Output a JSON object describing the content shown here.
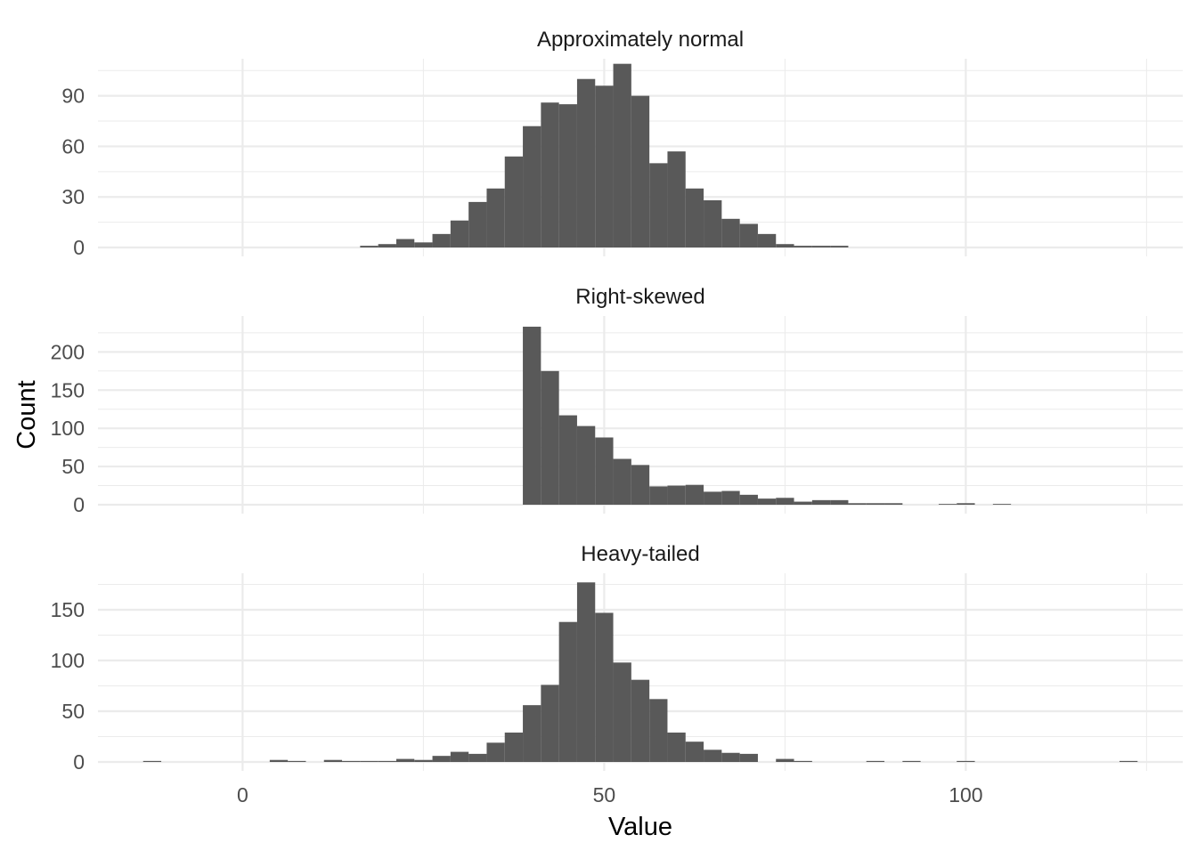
{
  "chart_data": {
    "type": "bar",
    "subtype": "faceted histogram",
    "xlabel": "Value",
    "ylabel": "Count",
    "xlim": [
      -20,
      130
    ],
    "x_ticks": [
      0,
      50,
      100
    ],
    "x_minor": [
      -25,
      25,
      75,
      125
    ],
    "bin_width": 2.5,
    "bar_color": "#595959",
    "grid_color": "#ebebeb",
    "grid": true,
    "facets": [
      {
        "name": "Approximately normal",
        "ylim": [
          0,
          112
        ],
        "y_ticks": [
          0,
          30,
          60,
          90
        ],
        "y_minor": [
          15,
          45,
          75,
          105
        ],
        "bins": [
          {
            "x": 17.5,
            "count": 1
          },
          {
            "x": 20,
            "count": 2
          },
          {
            "x": 22.5,
            "count": 5
          },
          {
            "x": 25,
            "count": 3
          },
          {
            "x": 27.5,
            "count": 8
          },
          {
            "x": 30,
            "count": 16
          },
          {
            "x": 32.5,
            "count": 27
          },
          {
            "x": 35,
            "count": 35
          },
          {
            "x": 37.5,
            "count": 54
          },
          {
            "x": 40,
            "count": 72
          },
          {
            "x": 42.5,
            "count": 86
          },
          {
            "x": 45,
            "count": 85
          },
          {
            "x": 47.5,
            "count": 100
          },
          {
            "x": 50,
            "count": 96
          },
          {
            "x": 52.5,
            "count": 109
          },
          {
            "x": 55,
            "count": 90
          },
          {
            "x": 57.5,
            "count": 50
          },
          {
            "x": 60,
            "count": 57
          },
          {
            "x": 62.5,
            "count": 35
          },
          {
            "x": 65,
            "count": 28
          },
          {
            "x": 67.5,
            "count": 17
          },
          {
            "x": 70,
            "count": 14
          },
          {
            "x": 72.5,
            "count": 8
          },
          {
            "x": 75,
            "count": 2
          },
          {
            "x": 77.5,
            "count": 1
          },
          {
            "x": 80,
            "count": 1
          },
          {
            "x": 82.5,
            "count": 1
          }
        ]
      },
      {
        "name": "Right-skewed",
        "ylim": [
          0,
          247
        ],
        "y_ticks": [
          0,
          50,
          100,
          150,
          200
        ],
        "y_minor": [
          25,
          75,
          125,
          175,
          225
        ],
        "bins": [
          {
            "x": 40,
            "count": 233
          },
          {
            "x": 42.5,
            "count": 175
          },
          {
            "x": 45,
            "count": 117
          },
          {
            "x": 47.5,
            "count": 103
          },
          {
            "x": 50,
            "count": 88
          },
          {
            "x": 52.5,
            "count": 60
          },
          {
            "x": 55,
            "count": 52
          },
          {
            "x": 57.5,
            "count": 24
          },
          {
            "x": 60,
            "count": 25
          },
          {
            "x": 62.5,
            "count": 26
          },
          {
            "x": 65,
            "count": 17
          },
          {
            "x": 67.5,
            "count": 18
          },
          {
            "x": 70,
            "count": 13
          },
          {
            "x": 72.5,
            "count": 8
          },
          {
            "x": 75,
            "count": 9
          },
          {
            "x": 77.5,
            "count": 4
          },
          {
            "x": 80,
            "count": 6
          },
          {
            "x": 82.5,
            "count": 6
          },
          {
            "x": 85,
            "count": 2
          },
          {
            "x": 87.5,
            "count": 2
          },
          {
            "x": 90,
            "count": 2
          },
          {
            "x": 97.5,
            "count": 1
          },
          {
            "x": 100,
            "count": 2
          },
          {
            "x": 105,
            "count": 1
          }
        ]
      },
      {
        "name": "Heavy-tailed",
        "ylim": [
          0,
          186
        ],
        "y_ticks": [
          0,
          50,
          100,
          150
        ],
        "y_minor": [
          25,
          75,
          125,
          175
        ],
        "bins": [
          {
            "x": -12.5,
            "count": 1
          },
          {
            "x": 5,
            "count": 2
          },
          {
            "x": 7.5,
            "count": 1
          },
          {
            "x": 12.5,
            "count": 2
          },
          {
            "x": 15,
            "count": 1
          },
          {
            "x": 17.5,
            "count": 1
          },
          {
            "x": 20,
            "count": 1
          },
          {
            "x": 22.5,
            "count": 3
          },
          {
            "x": 25,
            "count": 2
          },
          {
            "x": 27.5,
            "count": 6
          },
          {
            "x": 30,
            "count": 10
          },
          {
            "x": 32.5,
            "count": 8
          },
          {
            "x": 35,
            "count": 19
          },
          {
            "x": 37.5,
            "count": 29
          },
          {
            "x": 40,
            "count": 56
          },
          {
            "x": 42.5,
            "count": 76
          },
          {
            "x": 45,
            "count": 138
          },
          {
            "x": 47.5,
            "count": 177
          },
          {
            "x": 50,
            "count": 147
          },
          {
            "x": 52.5,
            "count": 98
          },
          {
            "x": 55,
            "count": 81
          },
          {
            "x": 57.5,
            "count": 62
          },
          {
            "x": 60,
            "count": 29
          },
          {
            "x": 62.5,
            "count": 20
          },
          {
            "x": 65,
            "count": 12
          },
          {
            "x": 67.5,
            "count": 9
          },
          {
            "x": 70,
            "count": 8
          },
          {
            "x": 75,
            "count": 3
          },
          {
            "x": 77.5,
            "count": 1
          },
          {
            "x": 87.5,
            "count": 1
          },
          {
            "x": 92.5,
            "count": 1
          },
          {
            "x": 100,
            "count": 1
          },
          {
            "x": 122.5,
            "count": 1
          }
        ]
      }
    ]
  }
}
